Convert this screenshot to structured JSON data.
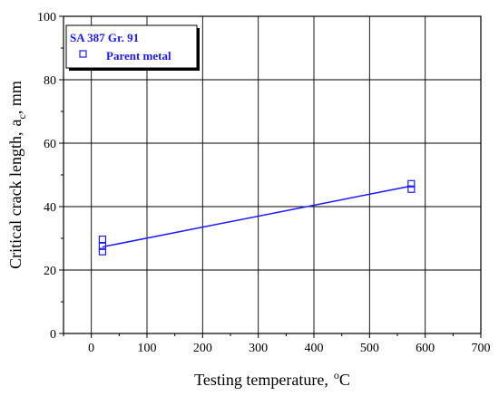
{
  "chart_data": {
    "type": "scatter",
    "xlabel_main": "Testing temperature,",
    "xlabel_unit_sup": "o",
    "xlabel_unit": "C",
    "ylabel_main": "Critical crack length,",
    "ylabel_sym": "a",
    "ylabel_sub": "c",
    "ylabel_unit": ", mm",
    "xlim": [
      -50,
      700
    ],
    "ylim": [
      0,
      100
    ],
    "xticks": [
      "0",
      "100",
      "200",
      "300",
      "400",
      "500",
      "600",
      "700"
    ],
    "yticks": [
      "0",
      "20",
      "40",
      "60",
      "80",
      "100"
    ],
    "grid": true,
    "legend": {
      "title": "SA 387 Gr. 91",
      "entry": "Parent metal",
      "placement": "top-left"
    },
    "series": [
      {
        "name": "Parent metal",
        "marker": "open-square",
        "color": "#1a1aff",
        "points": [
          {
            "x": 20,
            "y": 29.7
          },
          {
            "x": 20,
            "y": 27.5
          },
          {
            "x": 20,
            "y": 25.8
          },
          {
            "x": 575,
            "y": 47.2
          },
          {
            "x": 575,
            "y": 45.5
          }
        ]
      }
    ],
    "fit_line": {
      "color": "#1a1aff",
      "x": [
        20,
        575
      ],
      "y": [
        27.3,
        46.5
      ]
    }
  }
}
